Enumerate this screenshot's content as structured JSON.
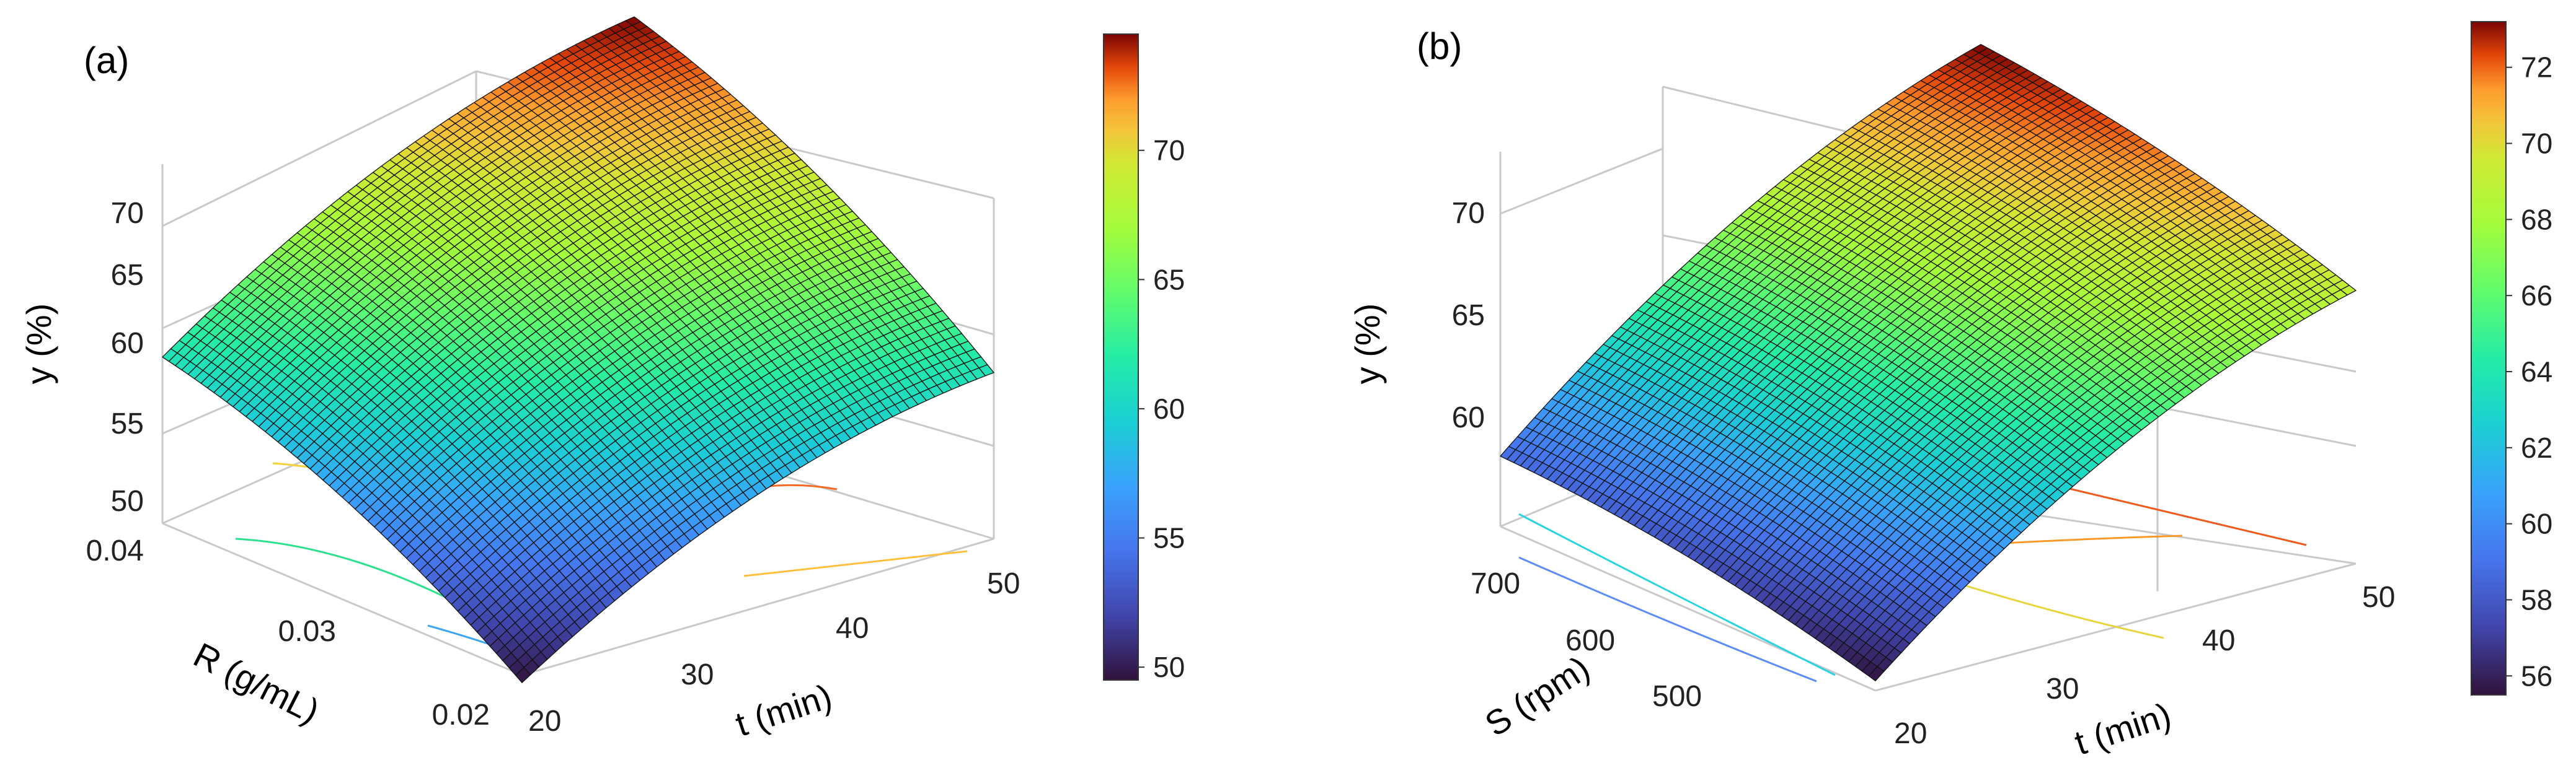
{
  "chart_data": [
    {
      "type": "surface",
      "panel_label": "(a)",
      "title": "",
      "xlabel": "t (min)",
      "ylabel": "R (g/mL)",
      "zlabel": "y (%)",
      "xlim": [
        20,
        50
      ],
      "ylim": [
        0.02,
        0.04
      ],
      "zlim": [
        50,
        75
      ],
      "x_ticks": [
        "20",
        "30",
        "40",
        "50"
      ],
      "y_ticks": [
        "0.02",
        "0.03",
        "0.04"
      ],
      "z_ticks": [
        "50",
        "55",
        "60",
        "65",
        "70"
      ],
      "corner_values": [
        {
          "t": 20,
          "R": 0.02,
          "y": 49.5
        },
        {
          "t": 20,
          "R": 0.04,
          "y": 61.0
        },
        {
          "t": 50,
          "R": 0.02,
          "y": 61.0
        },
        {
          "t": 50,
          "R": 0.04,
          "y": 74.5
        }
      ],
      "colorbar": {
        "min": 49.5,
        "max": 74.5,
        "ticks": [
          "50",
          "55",
          "60",
          "65",
          "70"
        ]
      }
    },
    {
      "type": "surface",
      "panel_label": "(b)",
      "title": "",
      "xlabel": "t (min)",
      "ylabel": "S (rpm)",
      "zlabel": "y (%)",
      "xlim": [
        20,
        50
      ],
      "ylim": [
        450,
        750
      ],
      "zlim": [
        55,
        73.5
      ],
      "x_ticks": [
        "20",
        "30",
        "40",
        "50"
      ],
      "y_ticks": [
        "500",
        "600",
        "700"
      ],
      "z_ticks": [
        "60",
        "65",
        "70"
      ],
      "corner_values": [
        {
          "t": 20,
          "S": 450,
          "y": 55.5
        },
        {
          "t": 20,
          "S": 750,
          "y": 58.6
        },
        {
          "t": 50,
          "S": 450,
          "y": 69.0
        },
        {
          "t": 50,
          "S": 750,
          "y": 73.2
        }
      ],
      "colorbar": {
        "min": 55.5,
        "max": 73.2,
        "ticks": [
          "56",
          "58",
          "60",
          "62",
          "64",
          "66",
          "68",
          "70",
          "72"
        ]
      }
    }
  ]
}
